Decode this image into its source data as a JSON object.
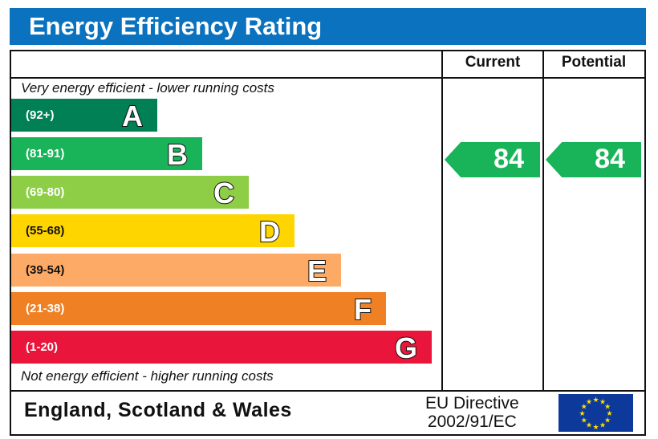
{
  "title": "Energy Efficiency Rating",
  "columns": {
    "current": "Current",
    "potential": "Potential"
  },
  "top_note": "Very energy efficient - lower running costs",
  "bottom_note": "Not energy efficient - higher running costs",
  "footer": {
    "country": "England, Scotland & Wales",
    "directive_line1": "EU Directive",
    "directive_line2": "2002/91/EC",
    "flag_icon": "eu-flag-icon"
  },
  "chart_data": {
    "type": "bar",
    "title": "Energy Efficiency Rating",
    "categories": [
      "A",
      "B",
      "C",
      "D",
      "E",
      "F",
      "G"
    ],
    "ranges": [
      "(92+)",
      "(81-91)",
      "(69-80)",
      "(55-68)",
      "(39-54)",
      "(21-38)",
      "(1-20)"
    ],
    "colors": [
      "#008054",
      "#19b459",
      "#8dce46",
      "#ffd500",
      "#fcaa65",
      "#ef8023",
      "#e9153b"
    ],
    "current": {
      "value": 84,
      "band": "B",
      "color": "#19b459"
    },
    "potential": {
      "value": 84,
      "band": "B",
      "color": "#19b459"
    }
  }
}
